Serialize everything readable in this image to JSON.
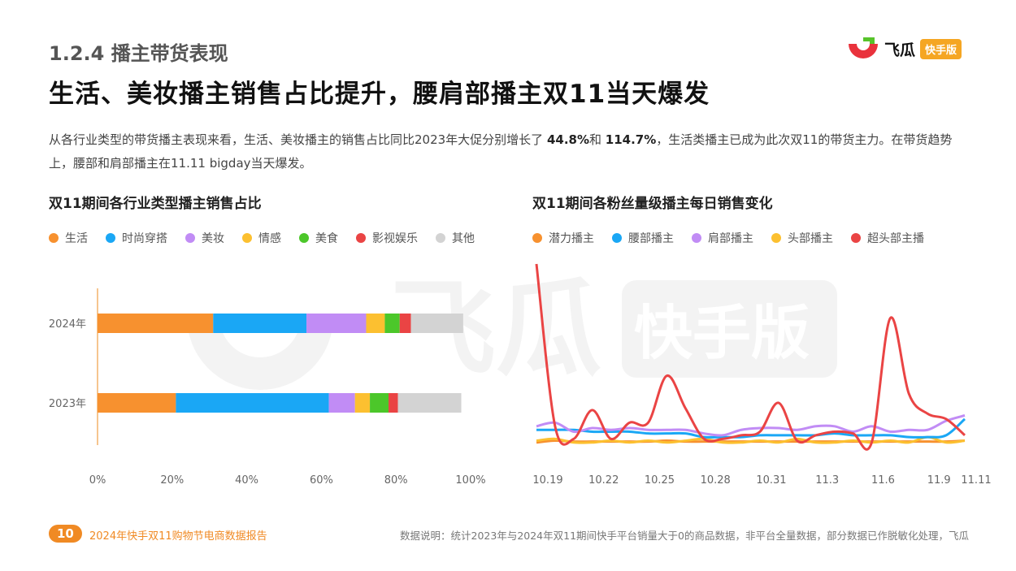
{
  "header": {
    "section_title": "1.2.4 播主带货表现",
    "main_title": "生活、美妆播主销售占比提升，腰肩部播主双11当天爆发",
    "logo_word": "飞瓜",
    "logo_badge": "快手版"
  },
  "description": {
    "part1": "从各行业类型的带货播主表现来看，生活、美妆播主的销售占比同比2023年大促分别增长了 ",
    "value1": "44.8%",
    "part2": "和 ",
    "value2": "114.7%",
    "part3": "，生活类播主已成为此次双11的带货主力。在带货趋势上，腰部和肩部播主在11.11 bigday当天爆发。"
  },
  "watermark": {
    "word": "飞瓜",
    "badge": "快手版"
  },
  "footer": {
    "page_number": "10",
    "report_name": "2024年快手双11购物节电商数据报告",
    "note": "数据说明：统计2023年与2024年双11期间快手平台销量大于0的商品数据，非平台全量数据，部分数据已作脱敏化处理，飞瓜"
  },
  "chart_data": [
    {
      "type": "bar",
      "stacked": true,
      "orientation": "horizontal",
      "title": "双11期间各行业类型播主销售占比",
      "categories": [
        "2024年",
        "2023年"
      ],
      "xlim": [
        0,
        100
      ],
      "x_ticks": [
        "0%",
        "20%",
        "40%",
        "60%",
        "80%",
        "100%"
      ],
      "legend_position": "top-left",
      "series": [
        {
          "name": "生活",
          "color": "#f7912f",
          "values": [
            31,
            21
          ]
        },
        {
          "name": "时尚穿搭",
          "color": "#1aa7f5",
          "values": [
            25,
            41
          ]
        },
        {
          "name": "美妆",
          "color": "#c18cf5",
          "values": [
            16,
            7
          ]
        },
        {
          "name": "情感",
          "color": "#fcc030",
          "values": [
            5,
            4
          ]
        },
        {
          "name": "美食",
          "color": "#4cc72a",
          "values": [
            4,
            5
          ]
        },
        {
          "name": "影视娱乐",
          "color": "#ea4444",
          "values": [
            3,
            2.5
          ]
        },
        {
          "name": "其他",
          "color": "#d3d3d3",
          "values": [
            14,
            17
          ]
        }
      ]
    },
    {
      "type": "line",
      "title": "双11期间各粉丝量级播主每日销售变化",
      "x": [
        "10.19",
        "10.20",
        "10.21",
        "10.22",
        "10.23",
        "10.24",
        "10.25",
        "10.26",
        "10.27",
        "10.28",
        "10.29",
        "10.30",
        "10.31",
        "11.1",
        "11.2",
        "11.3",
        "11.4",
        "11.5",
        "11.6",
        "11.7",
        "11.8",
        "11.9",
        "11.10",
        "11.11"
      ],
      "x_tick_labels": [
        "10.19",
        "10.22",
        "10.25",
        "10.28",
        "10.31",
        "11.3",
        "11.6",
        "11.9",
        "11.11"
      ],
      "x_tick_indices": [
        0,
        3,
        6,
        9,
        12,
        15,
        18,
        21,
        23
      ],
      "ylim": [
        0,
        100
      ],
      "legend_position": "top-left",
      "series": [
        {
          "name": "潜力播主",
          "color": "#f7912f",
          "values": [
            1,
            2,
            1.5,
            1.5,
            1.5,
            1.5,
            1.5,
            2,
            1.5,
            1.5,
            1.5,
            1.5,
            1.5,
            1.5,
            1.5,
            1.5,
            1.5,
            1.5,
            1.5,
            1.5,
            1.5,
            1.5,
            1.5,
            2
          ]
        },
        {
          "name": "腰部播主",
          "color": "#1aa7f5",
          "values": [
            8,
            8,
            8,
            7,
            7,
            7,
            6,
            6,
            6,
            4,
            4,
            4,
            5,
            5,
            5,
            5,
            6,
            5,
            5,
            5,
            4,
            4,
            5,
            14
          ]
        },
        {
          "name": "肩部播主",
          "color": "#c18cf5",
          "values": [
            10,
            12,
            7,
            9,
            8,
            9,
            8,
            8,
            8,
            6,
            5,
            8,
            9,
            9,
            8,
            10,
            10,
            7,
            10,
            7,
            8,
            8,
            13,
            16
          ]
        },
        {
          "name": "头部播主",
          "color": "#fcc030",
          "values": [
            2,
            3,
            1,
            1,
            2,
            1,
            2,
            1,
            2,
            3,
            1,
            1,
            2,
            1,
            3,
            1,
            1,
            2,
            1,
            2,
            1,
            4,
            1,
            2
          ]
        },
        {
          "name": "超头部主播",
          "color": "#ea4444",
          "values": [
            100,
            10,
            3,
            19,
            3,
            12,
            12,
            38,
            20,
            3,
            3,
            5,
            7,
            23,
            2,
            5,
            7,
            6,
            1,
            70,
            28,
            17,
            14,
            5
          ]
        }
      ]
    }
  ]
}
